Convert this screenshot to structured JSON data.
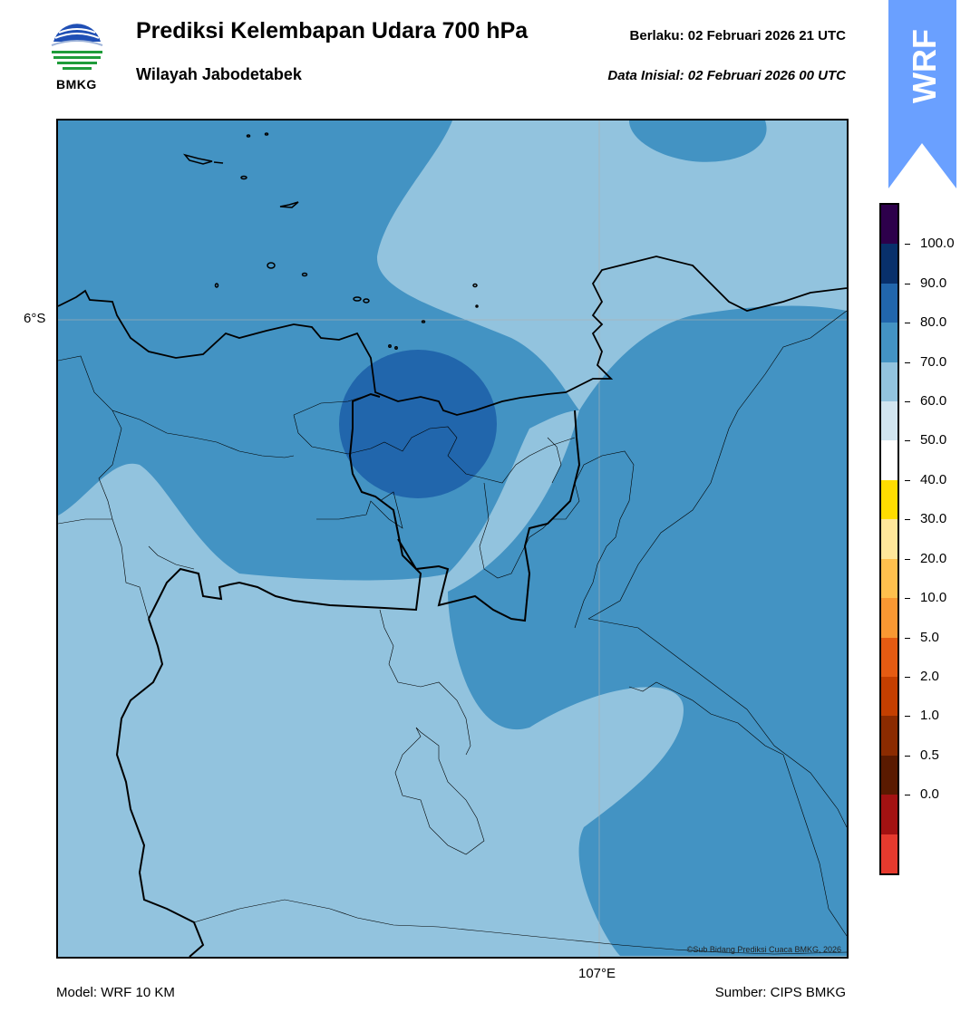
{
  "header": {
    "title": "Prediksi Kelembapan Udara 700 hPa",
    "subtitle": "Wilayah Jabodetabek",
    "valid_text": "Berlaku:  02 Februari 2026 21 UTC",
    "init_text": "Data Inisial:  02 Februari 2026 00 UTC"
  },
  "logo": {
    "text": "BMKG",
    "icon": "bmkg-logo-icon"
  },
  "badge": {
    "text": "WRF",
    "color": "#6aa0ff"
  },
  "map": {
    "lat_label": "6°S",
    "lon_label": "107°E",
    "credit": "©Sub Bidang Prediksi Cuaca BMKG, 2026",
    "colors": {
      "60-70": "#92c3de",
      "70-80": "#4393c3",
      "80-90": "#2166ac"
    }
  },
  "footer": {
    "model": "Model: WRF 10 KM",
    "source": "Sumber: CIPS BMKG"
  },
  "colorbar": {
    "labels": [
      "100.0",
      "90.0",
      "80.0",
      "70.0",
      "60.0",
      "50.0",
      "40.0",
      "30.0",
      "20.0",
      "10.0",
      "5.0",
      "2.0",
      "1.0",
      "0.5",
      "0.0"
    ],
    "colors": [
      "#2d004b",
      "#08306b",
      "#2166ac",
      "#4393c3",
      "#92c3de",
      "#d1e5f0",
      "#ffffff",
      "#ffdd00",
      "#ffe79a",
      "#ffc04d",
      "#f99832",
      "#e55b12",
      "#c43f00",
      "#8b2b00",
      "#5a1a00",
      "#a31212",
      "#e63a2e"
    ]
  }
}
